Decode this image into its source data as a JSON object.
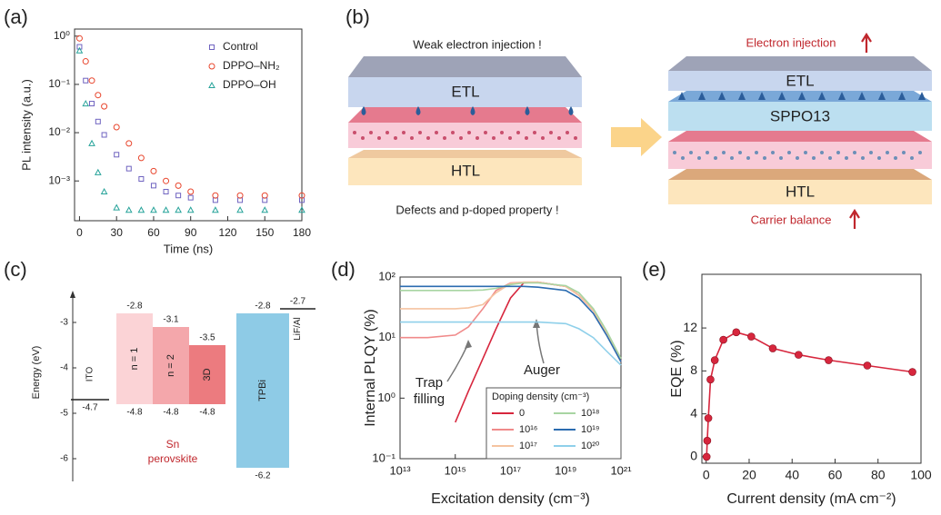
{
  "diagram": {
    "panel_label": "(b)",
    "left_top": "Weak electron injection !",
    "left_etl": "ETL",
    "left_htl": "HTL",
    "left_bottom": "Defects and p-doped property !",
    "right_top": "Electron injection",
    "right_etl": "ETL",
    "right_middle": "SPPO13",
    "right_htl": "HTL",
    "right_bottom": "Carrier balance"
  },
  "chart_data": [
    {
      "panel_label": "(a)",
      "type": "scatter",
      "xlabel": "Time (ns)",
      "ylabel": "PL intensity (a.u.)",
      "x": [
        0,
        5,
        10,
        15,
        20,
        30,
        40,
        50,
        60,
        70,
        80,
        90,
        110,
        130,
        150,
        180
      ],
      "series": [
        {
          "name": "Control",
          "color": "#6f63c0",
          "marker": "square",
          "values": [
            0.6,
            0.12,
            0.04,
            0.017,
            0.009,
            0.0035,
            0.0018,
            0.0011,
            0.0008,
            0.0006,
            0.0005,
            0.00045,
            0.0004,
            0.0004,
            0.0004,
            0.0004
          ]
        },
        {
          "name": "DPPO–NH₂",
          "color": "#e8452c",
          "marker": "circle",
          "values": [
            0.9,
            0.3,
            0.12,
            0.06,
            0.035,
            0.013,
            0.006,
            0.003,
            0.0016,
            0.001,
            0.0008,
            0.0006,
            0.0005,
            0.0005,
            0.0005,
            0.0005
          ]
        },
        {
          "name": "DPPO–OH",
          "color": "#27a39a",
          "marker": "triangle",
          "values": [
            0.5,
            0.04,
            0.006,
            0.0015,
            0.0006,
            0.00028,
            0.00025,
            0.00025,
            0.00025,
            0.00025,
            0.00025,
            0.00025,
            0.00025,
            0.00025,
            0.00025,
            0.00025
          ]
        }
      ],
      "xlim": [
        -4,
        180
      ],
      "xticks": [
        0,
        30,
        60,
        90,
        120,
        150,
        180
      ],
      "ylim": [
        0.00015,
        1.4
      ],
      "ylog": true,
      "yticks": [
        {
          "value": 1,
          "label": "10⁰"
        },
        {
          "value": 0.1,
          "label": "10⁻¹"
        },
        {
          "value": 0.01,
          "label": "10⁻²"
        },
        {
          "value": 0.001,
          "label": "10⁻³"
        }
      ],
      "legend": "upper right"
    },
    {
      "panel_label": "(c)",
      "type": "energy_levels",
      "ylabel": "Energy (eV)",
      "categories": [
        "ITO",
        "n = 1",
        "n = 2",
        "3D",
        "TPBi",
        "LiF/Al"
      ],
      "top": [
        null,
        -2.8,
        -3.1,
        -3.5,
        -2.8,
        -2.7
      ],
      "bottom": [
        -4.7,
        -4.8,
        -4.8,
        -4.8,
        -6.2,
        null
      ],
      "colors": [
        "#222222",
        "#fbd3d6",
        "#f4a7ab",
        "#ec7b7f",
        "#8ecbe6",
        "#222222"
      ],
      "annotation": [
        "Sn",
        "perovskite"
      ],
      "ylim": [
        -6.5,
        -2.4
      ],
      "yticks": [
        -3,
        -4,
        -5,
        -6
      ]
    },
    {
      "panel_label": "(d)",
      "type": "line",
      "xlabel": "Excitation density (cm⁻³)",
      "ylabel": "Internal PLQY (%)",
      "x": [
        10000000000000.0,
        100000000000000.0,
        1000000000000000.0,
        3000000000000000.0,
        1e+16,
        3e+16,
        1e+17,
        3e+17,
        1e+18,
        1e+19,
        3e+19,
        1e+20,
        3e+20,
        1e+21
      ],
      "series": [
        {
          "name": "0",
          "color": "#d7263d",
          "values": [
            null,
            null,
            0.4,
            1.3,
            4.5,
            14,
            45,
            80,
            82,
            70,
            50,
            28,
            12,
            4
          ]
        },
        {
          "name": "10¹⁶",
          "color": "#f08a8a",
          "values": [
            10,
            10,
            11,
            15,
            30,
            60,
            80,
            82,
            82,
            70,
            50,
            28,
            12,
            4
          ]
        },
        {
          "name": "10¹⁷",
          "color": "#f5c3a0",
          "values": [
            30,
            30,
            30,
            31,
            35,
            55,
            78,
            82,
            82,
            70,
            50,
            28,
            12,
            4
          ]
        },
        {
          "name": "10¹⁸",
          "color": "#a8d5a2",
          "values": [
            60,
            60,
            60,
            60,
            61,
            65,
            75,
            80,
            80,
            72,
            55,
            30,
            13,
            4.5
          ]
        },
        {
          "name": "10¹⁹",
          "color": "#2b6cb0",
          "values": [
            70,
            70,
            70,
            70,
            70,
            70,
            70,
            70,
            68,
            60,
            45,
            25,
            11,
            4
          ]
        },
        {
          "name": "10²⁰",
          "color": "#8fd0ea",
          "values": [
            18,
            18,
            18,
            18,
            18,
            18,
            18,
            18,
            18,
            17,
            14,
            10,
            6,
            3.5
          ]
        }
      ],
      "xlim": [
        10000000000000.0,
        1e+21
      ],
      "xlog": true,
      "xticks": [
        {
          "value": 10000000000000.0,
          "label": "10¹³"
        },
        {
          "value": 1000000000000000.0,
          "label": "10¹⁵"
        },
        {
          "value": 1e+17,
          "label": "10¹⁷"
        },
        {
          "value": 1e+19,
          "label": "10¹⁹"
        },
        {
          "value": 1e+21,
          "label": "10²¹"
        }
      ],
      "ylim": [
        0.1,
        100
      ],
      "ylog": true,
      "yticks": [
        {
          "value": 0.1,
          "label": "10⁻¹"
        },
        {
          "value": 1,
          "label": "10⁰"
        },
        {
          "value": 10,
          "label": "10¹"
        },
        {
          "value": 100,
          "label": "10²"
        }
      ],
      "legend_title": "Doping density (cm⁻³)",
      "legend": "lower right",
      "annotations": [
        [
          "Trap",
          "filling"
        ],
        [
          "Auger"
        ]
      ]
    },
    {
      "panel_label": "(e)",
      "type": "line_markers",
      "xlabel": "Current density (mA cm⁻²)",
      "ylabel": "EQE (%)",
      "color": "#d7263d",
      "x": [
        0.2,
        0.5,
        1,
        2,
        4,
        8,
        14,
        21,
        31,
        43,
        57,
        75,
        96
      ],
      "values": [
        0,
        1.5,
        3.6,
        7.2,
        9,
        10.9,
        11.6,
        11.2,
        10.1,
        9.5,
        9,
        8.5,
        7.9
      ],
      "xlim": [
        -2,
        100
      ],
      "xticks": [
        0,
        20,
        40,
        60,
        80,
        100
      ],
      "ylim": [
        -0.6,
        17
      ],
      "yticks": [
        0,
        4,
        8,
        12
      ]
    }
  ]
}
